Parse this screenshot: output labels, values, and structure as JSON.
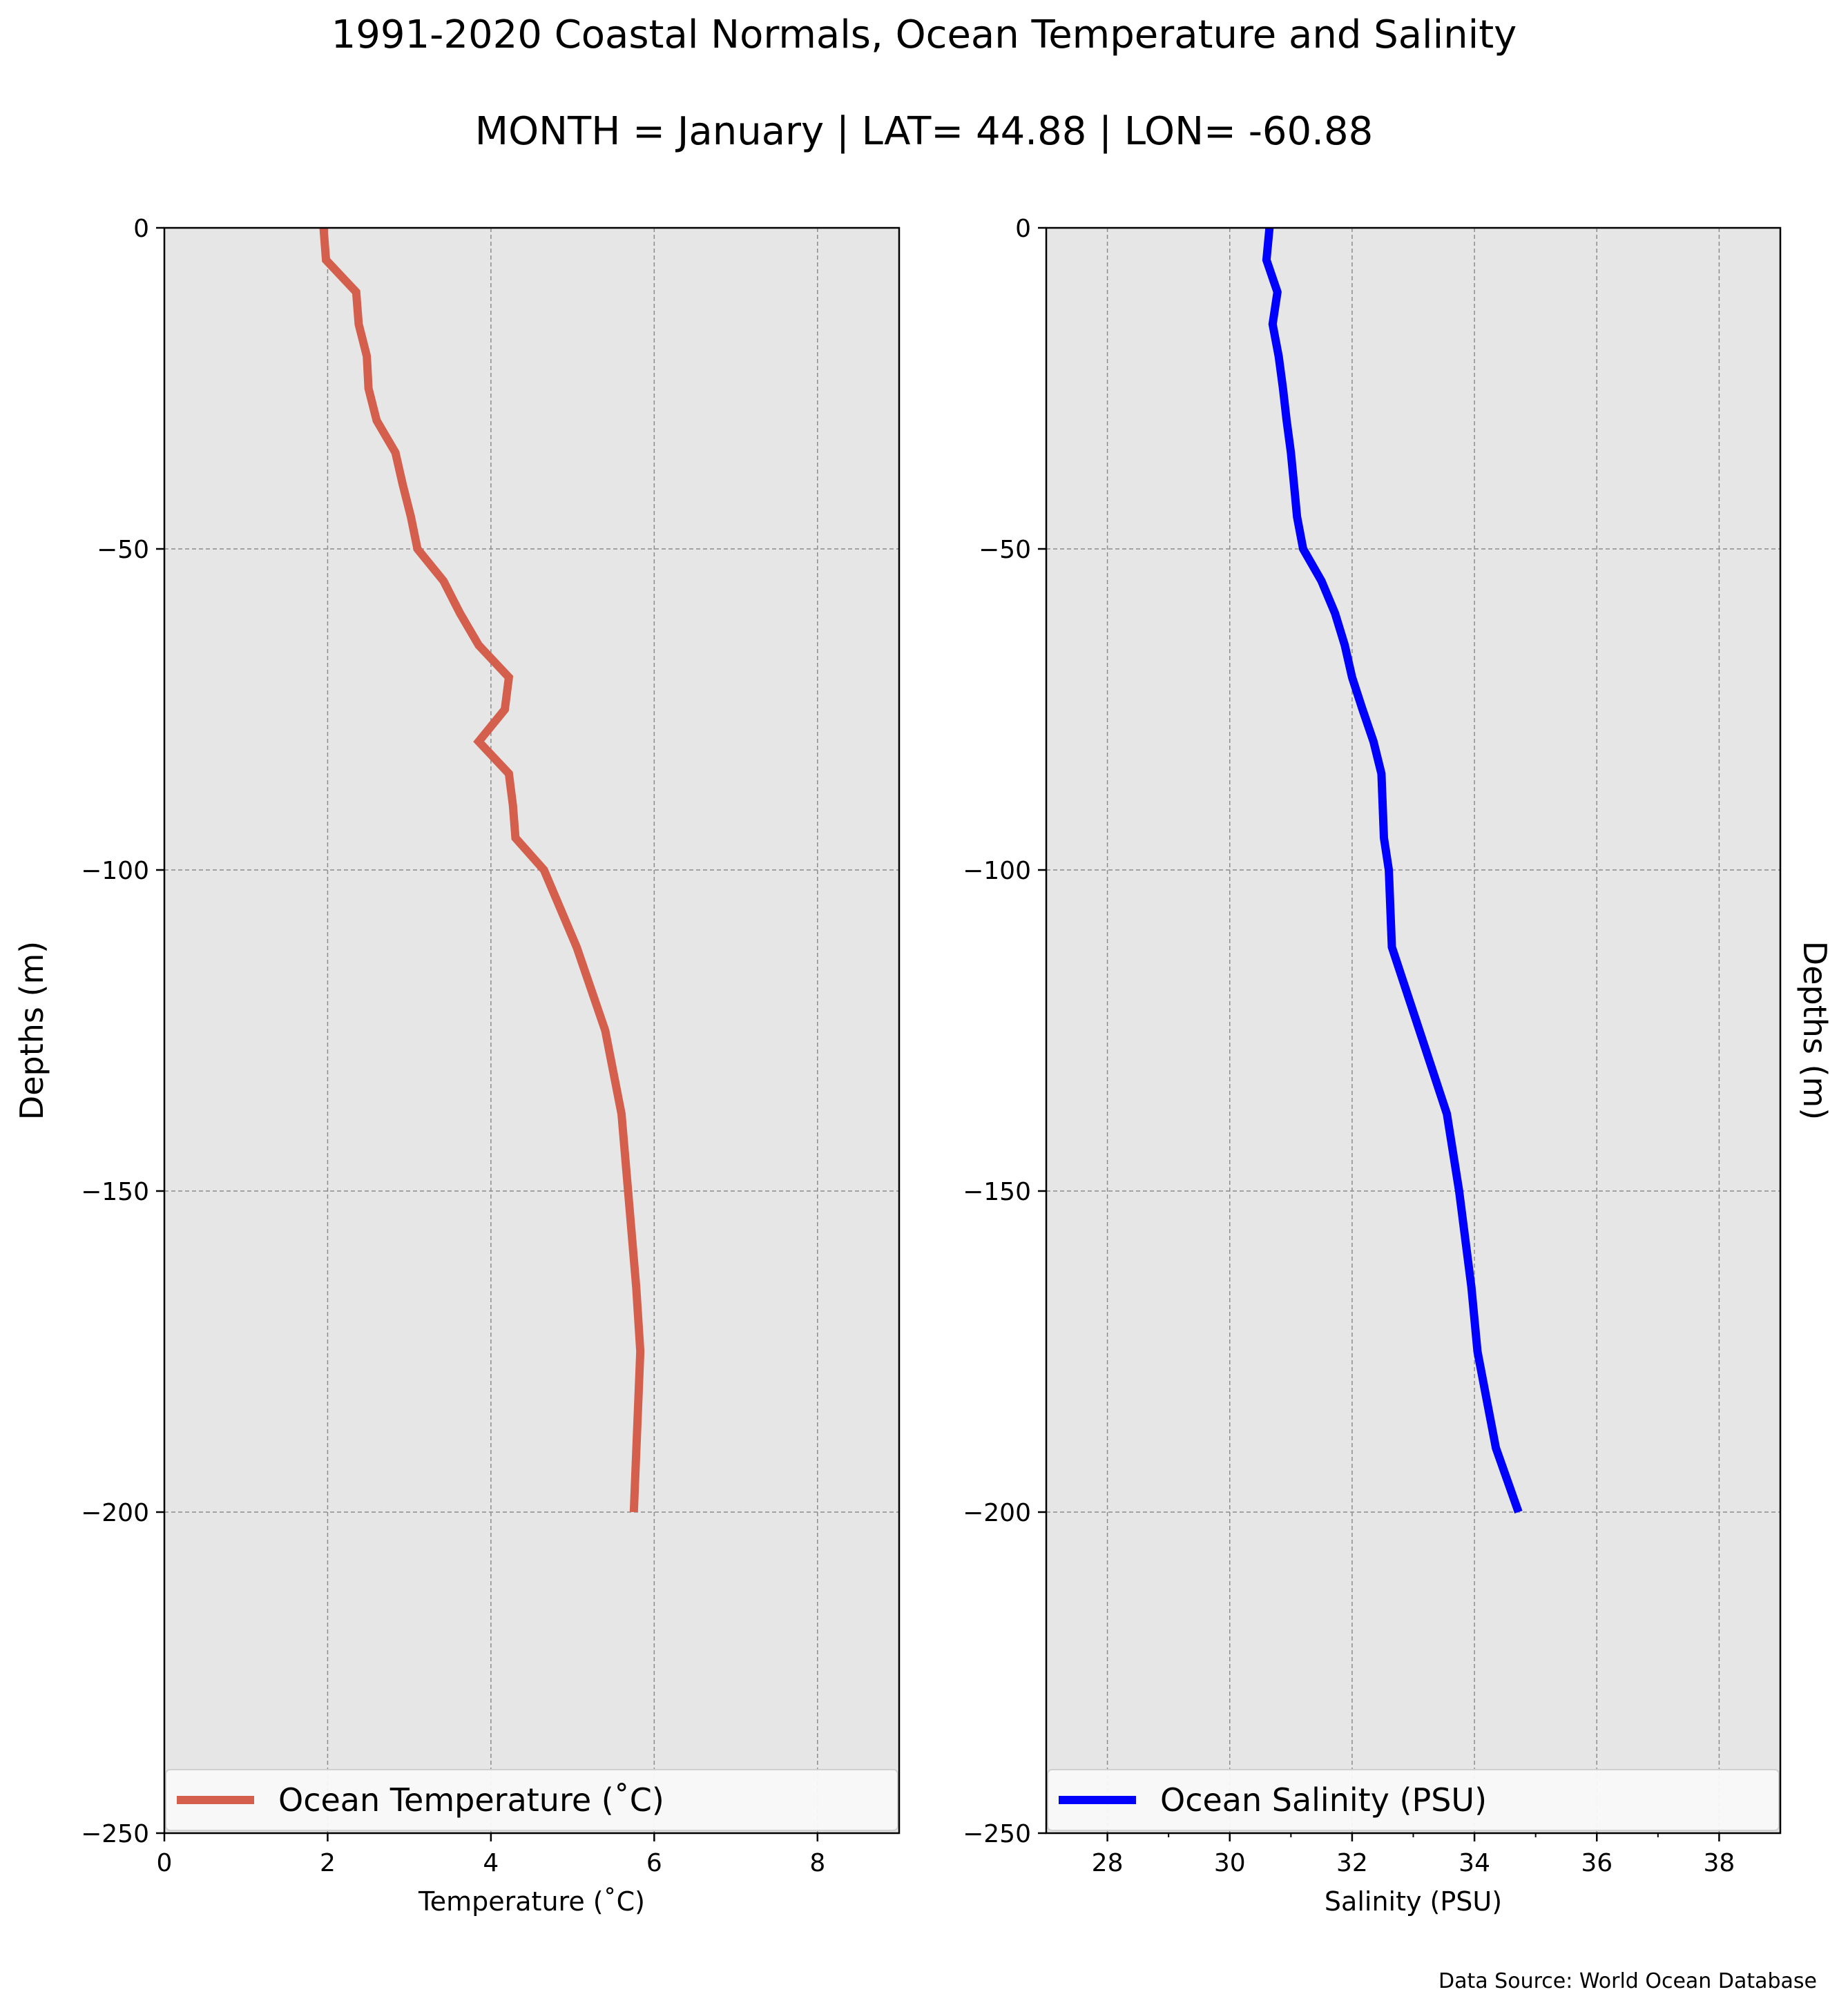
{
  "figure": {
    "title": "1991-2020 Coastal Normals, Ocean Temperature and Salinity",
    "subtitle": "MONTH = January | LAT= 44.88 | LON= -60.88",
    "source": "Data Source: World Ocean Database"
  },
  "colors": {
    "temperature_line": "#d45f4c",
    "salinity_line": "#0000ff",
    "axes_background": "#e6e6e6",
    "grid": "#8c8c8c",
    "legend_background": "#f9f9f9"
  },
  "chart_data": [
    {
      "type": "line",
      "xlabel": "Temperature (˚C)",
      "ylabel": "Depths (m)",
      "xlim": [
        0,
        9
      ],
      "ylim": [
        -250,
        0
      ],
      "xticks": [
        0,
        2,
        4,
        6,
        8
      ],
      "xtick_labels": [
        "0",
        "2",
        "4",
        "6",
        "8"
      ],
      "yticks": [
        0,
        -50,
        -100,
        -150,
        -200,
        -250
      ],
      "ytick_labels": [
        "0",
        "−50",
        "−100",
        "−150",
        "−200",
        "−250"
      ],
      "grid": true,
      "legend_position": "lower center",
      "series": [
        {
          "name": "Ocean Temperature (˚C)",
          "x": [
            1.95,
            1.98,
            2.35,
            2.38,
            2.48,
            2.5,
            2.6,
            2.83,
            2.92,
            3.02,
            3.1,
            3.42,
            3.62,
            3.85,
            4.22,
            4.17,
            3.85,
            4.22,
            4.27,
            4.3,
            4.65,
            5.05,
            5.4,
            5.6,
            5.68,
            5.78,
            5.83,
            5.75
          ],
          "y": [
            0,
            -5,
            -10,
            -15,
            -20,
            -25,
            -30,
            -35,
            -40,
            -45,
            -50,
            -55,
            -60,
            -65,
            -70,
            -75,
            -80,
            -85,
            -90,
            -95,
            -100,
            -112,
            -125,
            -138,
            -150,
            -165,
            -175,
            -200
          ]
        }
      ]
    },
    {
      "type": "line",
      "xlabel": "Salinity (PSU)",
      "ylabel": "Depths (m)",
      "xlim": [
        27,
        39
      ],
      "ylim": [
        -250,
        0
      ],
      "xticks": [
        28,
        30,
        32,
        34,
        36,
        38
      ],
      "xtick_labels": [
        "28",
        "30",
        "32",
        "34",
        "36",
        "38"
      ],
      "yticks": [
        0,
        -50,
        -100,
        -150,
        -200,
        -250
      ],
      "ytick_labels": [
        "0",
        "−50",
        "−100",
        "−150",
        "−200",
        "−250"
      ],
      "grid": true,
      "legend_position": "lower center",
      "series": [
        {
          "name": "Ocean Salinity (PSU)",
          "x": [
            30.65,
            30.6,
            30.78,
            30.7,
            30.8,
            30.87,
            30.93,
            31.0,
            31.05,
            31.1,
            31.2,
            31.5,
            31.72,
            31.88,
            32.0,
            32.17,
            32.35,
            32.48,
            32.5,
            32.52,
            32.6,
            32.65,
            33.1,
            33.55,
            33.75,
            33.95,
            34.05,
            34.35,
            34.72
          ],
          "y": [
            0,
            -5,
            -10,
            -15,
            -20,
            -25,
            -30,
            -35,
            -40,
            -45,
            -50,
            -55,
            -60,
            -65,
            -70,
            -75,
            -80,
            -85,
            -90,
            -95,
            -100,
            -112,
            -125,
            -138,
            -150,
            -165,
            -175,
            -190,
            -200
          ]
        }
      ]
    }
  ]
}
